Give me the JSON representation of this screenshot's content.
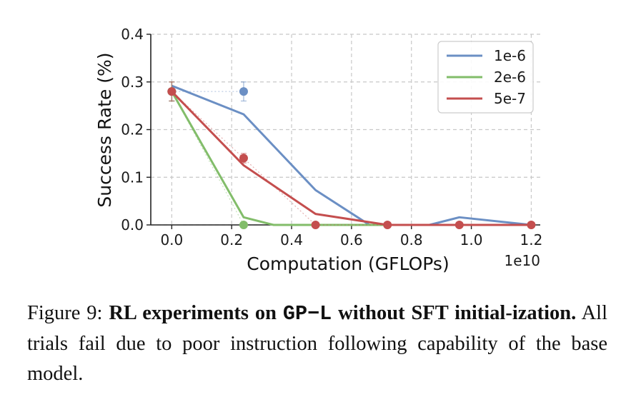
{
  "chart_data": {
    "type": "line",
    "title": "",
    "xlabel": "Computation (GFLOPs)",
    "ylabel": "Success Rate (%)",
    "x_scale_note": "1e10",
    "xlim": [
      -0.07,
      1.23
    ],
    "ylim": [
      0.0,
      0.4
    ],
    "x_ticks": [
      0.0,
      0.2,
      0.4,
      0.6,
      0.8,
      1.0,
      1.2
    ],
    "x_tick_labels": [
      "0.0",
      "0.2",
      "0.4",
      "0.6",
      "0.8",
      "1.0",
      "1.2"
    ],
    "y_ticks": [
      0.0,
      0.1,
      0.2,
      0.3,
      0.4
    ],
    "y_tick_labels": [
      "0.0",
      "0.1",
      "0.2",
      "0.3",
      "0.4"
    ],
    "grid": true,
    "legend_position": "top-right",
    "series": [
      {
        "name": "1e-6",
        "color": "#6b8fc4",
        "smoothed_x": [
          0.0,
          0.24,
          0.48,
          0.66,
          0.72,
          0.86,
          0.96,
          1.2
        ],
        "smoothed_y": [
          0.292,
          0.232,
          0.073,
          0.0,
          0.0,
          0.0,
          0.016,
          0.0
        ],
        "points_x": [
          0.0,
          0.24
        ],
        "points_y": [
          0.28,
          0.28
        ],
        "errors": [
          0.02,
          0.02
        ]
      },
      {
        "name": "2e-6",
        "color": "#82bd6a",
        "smoothed_x": [
          0.0,
          0.24,
          0.34,
          0.48,
          0.72,
          0.86
        ],
        "smoothed_y": [
          0.28,
          0.016,
          0.0,
          0.0,
          0.0,
          0.0
        ],
        "points_x": [
          0.0,
          0.24
        ],
        "points_y": [
          0.28,
          0.0
        ],
        "errors": [
          0.02,
          0.0
        ]
      },
      {
        "name": "5e-7",
        "color": "#c44e4e",
        "smoothed_x": [
          0.0,
          0.24,
          0.48,
          0.72,
          0.96,
          1.2
        ],
        "smoothed_y": [
          0.28,
          0.125,
          0.023,
          0.0,
          0.0,
          0.0
        ],
        "points_x": [
          0.0,
          0.24,
          0.48,
          0.72,
          0.96,
          1.2
        ],
        "points_y": [
          0.28,
          0.14,
          0.0,
          0.0,
          0.0,
          0.0
        ],
        "errors": [
          0.02,
          0.01,
          0.0,
          0.0,
          0.0,
          0.0
        ]
      }
    ]
  },
  "caption": {
    "figure_label": "Figure 9:",
    "bold_part1": "RL experiments on",
    "mono_term": "GP−L",
    "bold_part2": "without SFT initial-ization.",
    "body": "All trials fail due to poor instruction following capability of the base model."
  }
}
